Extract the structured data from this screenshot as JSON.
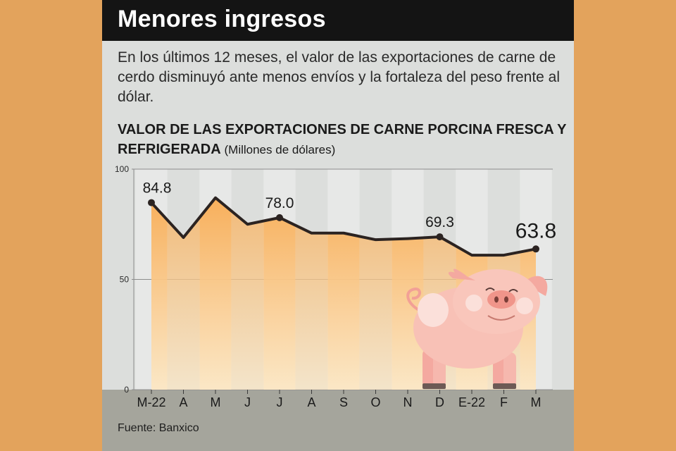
{
  "header": {
    "title": "Menores ingresos"
  },
  "description": "En los últimos 12 meses, el valor de las exportaciones de carne de cerdo disminuyó ante menos envíos y la fortaleza del peso frente al dólar.",
  "chart_heading": {
    "main": "VALOR DE LAS EXPORTACIONES DE CARNE PORCINA FRESCA Y REFRIGERADA",
    "units": "(Millones de dólares)"
  },
  "source": "Fuente: Banxico",
  "chart_data": {
    "type": "area",
    "categories": [
      "M-22",
      "A",
      "M",
      "J",
      "J",
      "A",
      "S",
      "O",
      "N",
      "D",
      "E-22",
      "F",
      "M"
    ],
    "values": [
      84.8,
      69.0,
      87.0,
      75.0,
      78.0,
      71.0,
      71.0,
      68.0,
      68.5,
      69.3,
      61.0,
      61.0,
      63.8
    ],
    "data_labels": [
      "84.8",
      "",
      "",
      "",
      "78.0",
      "",
      "",
      "",
      "",
      "69.3",
      "",
      "",
      "63.8"
    ],
    "yticks": [
      "100",
      "50",
      "0"
    ],
    "ylim": [
      0,
      100
    ],
    "grid": true,
    "colors": {
      "line": "#2b2321",
      "fill_top": "#f7a64a",
      "fill_bottom": "#fde7c2",
      "column": "#e7e8e7"
    }
  },
  "illustration": {
    "icon": "pig-icon"
  }
}
